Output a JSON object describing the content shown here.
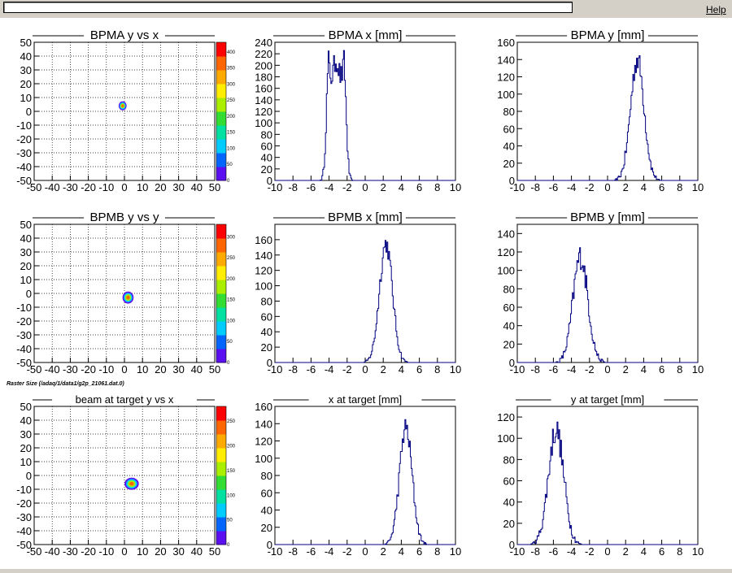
{
  "window": {
    "path_value": "",
    "help_label": "Help",
    "separator_text": "Raster Size (/adaq/1/data1/g2p_21061.dat.0)"
  },
  "colors": {
    "hist_line": "#000080",
    "frame": "#000000",
    "palette": [
      "#5a0ff0",
      "#0066ff",
      "#00ccff",
      "#00e0a0",
      "#33dd33",
      "#aaee00",
      "#ffee00",
      "#ffaa00",
      "#ff6600",
      "#ff0000"
    ]
  },
  "panels": [
    {
      "id": "bpma-yx",
      "type": "heatmap",
      "title": "BPMA y vs x",
      "x_ticks": [
        "-50",
        "-40",
        "-30",
        "-20",
        "-10",
        "0",
        "10",
        "20",
        "30",
        "40",
        "50"
      ],
      "y_ticks": [
        "-50",
        "-40",
        "-30",
        "-20",
        "-10",
        "0",
        "10",
        "20",
        "30",
        "40",
        "50"
      ],
      "z_ticks": [
        "0",
        "50",
        "100",
        "150",
        "200",
        "250",
        "300",
        "350",
        "400"
      ],
      "grid": true,
      "spot": {
        "x": -1,
        "y": 4,
        "sx": 1.0,
        "sy": 1.5
      }
    },
    {
      "id": "bpma-x",
      "type": "histogram",
      "title": "BPMA x [mm]",
      "x_ticks": [
        "-10",
        "-8",
        "-6",
        "-4",
        "-2",
        "0",
        "2",
        "4",
        "6",
        "8",
        "10"
      ],
      "y_ticks": [
        "0",
        "20",
        "40",
        "60",
        "80",
        "100",
        "120",
        "140",
        "160",
        "180",
        "200",
        "220",
        "240"
      ],
      "ymax": 240,
      "dist": {
        "shape": "flat",
        "center": -3.2,
        "half_width": 0.8,
        "sigma": 0.28,
        "peak": 210,
        "noise": 22
      }
    },
    {
      "id": "bpma-y",
      "type": "histogram",
      "title": "BPMA y [mm]",
      "x_ticks": [
        "-10",
        "-8",
        "-6",
        "-4",
        "-2",
        "0",
        "2",
        "4",
        "6",
        "8",
        "10"
      ],
      "y_ticks": [
        "0",
        "20",
        "40",
        "60",
        "80",
        "100",
        "120",
        "140",
        "160"
      ],
      "ymax": 160,
      "dist": {
        "shape": "gauss",
        "center": 3.3,
        "sigma": 0.75,
        "peak": 140,
        "noise": 14
      }
    },
    {
      "id": "bpmb-yy",
      "type": "heatmap",
      "title": "BPMB y vs y",
      "x_ticks": [
        "-50",
        "-40",
        "-30",
        "-20",
        "-10",
        "0",
        "10",
        "20",
        "30",
        "40",
        "50"
      ],
      "y_ticks": [
        "-50",
        "-40",
        "-30",
        "-20",
        "-10",
        "0",
        "10",
        "20",
        "30",
        "40",
        "50"
      ],
      "z_ticks": [
        "0",
        "50",
        "100",
        "150",
        "200",
        "250",
        "300"
      ],
      "grid": true,
      "spot": {
        "x": 2,
        "y": -3,
        "sx": 1.4,
        "sy": 2.0
      }
    },
    {
      "id": "bpmb-x",
      "type": "histogram",
      "title": "BPMB x [mm]",
      "x_ticks": [
        "-10",
        "-8",
        "-6",
        "-4",
        "-2",
        "0",
        "2",
        "4",
        "6",
        "8",
        "10"
      ],
      "y_ticks": [
        "0",
        "20",
        "40",
        "60",
        "80",
        "100",
        "120",
        "140",
        "160"
      ],
      "ymax": 180,
      "dist": {
        "shape": "gauss",
        "center": 2.3,
        "sigma": 0.72,
        "peak": 155,
        "noise": 13
      }
    },
    {
      "id": "bpmb-y",
      "type": "histogram",
      "title": "BPMB y [mm]",
      "x_ticks": [
        "-10",
        "-8",
        "-6",
        "-4",
        "-2",
        "0",
        "2",
        "4",
        "6",
        "8",
        "10"
      ],
      "y_ticks": [
        "0",
        "20",
        "40",
        "60",
        "80",
        "100",
        "120",
        "140"
      ],
      "ymax": 150,
      "dist": {
        "shape": "gauss",
        "center": -3.0,
        "sigma": 0.82,
        "peak": 115,
        "noise": 14
      }
    },
    {
      "id": "target-yx",
      "type": "heatmap",
      "title": "beam at target y vs x",
      "x_ticks": [
        "-50",
        "-40",
        "-30",
        "-20",
        "-10",
        "0",
        "10",
        "20",
        "30",
        "40",
        "50"
      ],
      "y_ticks": [
        "-50",
        "-40",
        "-30",
        "-20",
        "-10",
        "0",
        "10",
        "20",
        "30",
        "40",
        "50"
      ],
      "z_ticks": [
        "0",
        "50",
        "100",
        "150",
        "200",
        "250"
      ],
      "grid": true,
      "spot": {
        "x": 4,
        "y": -6,
        "sx": 1.8,
        "sy": 2.0
      }
    },
    {
      "id": "target-x",
      "type": "histogram",
      "title": "x at target [mm]",
      "x_ticks": [
        "-10",
        "-8",
        "-6",
        "-4",
        "-2",
        "0",
        "2",
        "4",
        "6",
        "8",
        "10"
      ],
      "y_ticks": [
        "0",
        "20",
        "40",
        "60",
        "80",
        "100",
        "120",
        "140",
        "160"
      ],
      "ymax": 160,
      "dist": {
        "shape": "gauss",
        "center": 4.5,
        "sigma": 0.7,
        "peak": 135,
        "noise": 13
      }
    },
    {
      "id": "target-y",
      "type": "histogram",
      "title": "y at target [mm]",
      "x_ticks": [
        "-10",
        "-8",
        "-6",
        "-4",
        "-2",
        "0",
        "2",
        "4",
        "6",
        "8",
        "10"
      ],
      "y_ticks": [
        "0",
        "20",
        "40",
        "60",
        "80",
        "100",
        "120"
      ],
      "ymax": 130,
      "dist": {
        "shape": "gauss",
        "center": -5.7,
        "sigma": 0.85,
        "peak": 108,
        "noise": 13
      }
    }
  ]
}
